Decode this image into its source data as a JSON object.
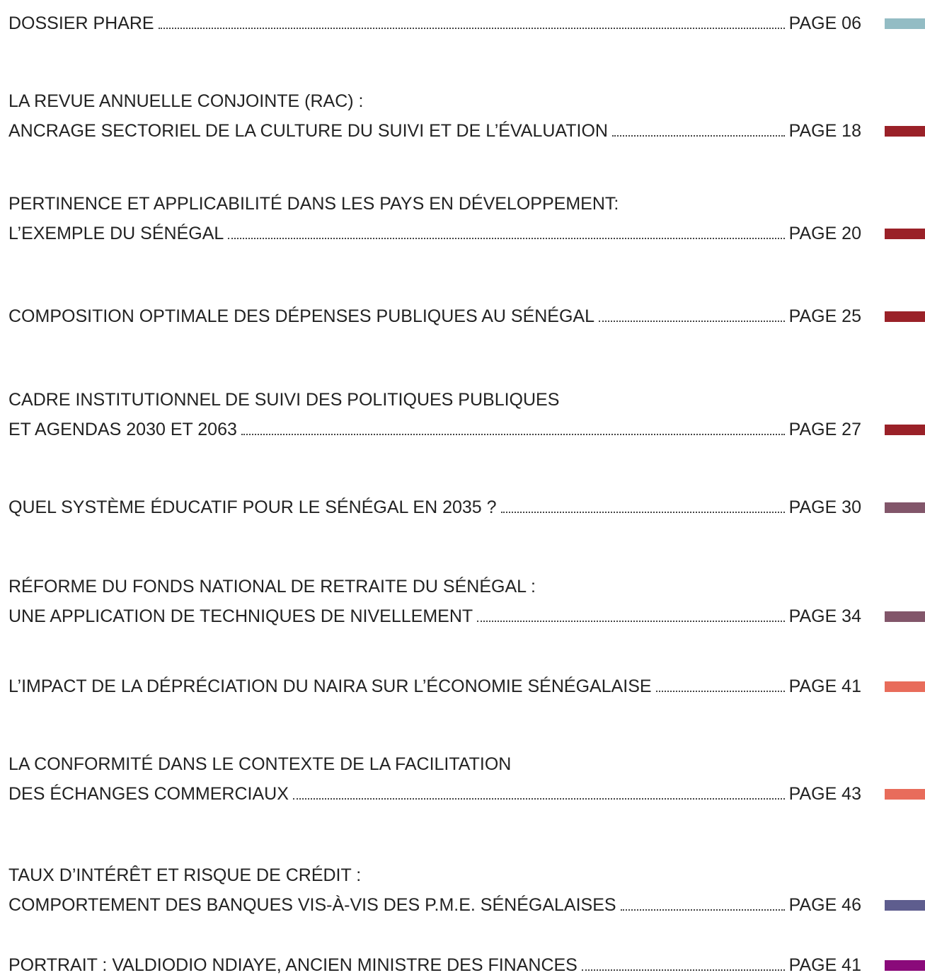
{
  "entries": [
    {
      "lines": [
        "DOSSIER PHARE"
      ],
      "page": "PAGE 06",
      "color": "#93bcc4"
    },
    {
      "lines": [
        "LA REVUE ANNUELLE CONJOINTE (RAC) :",
        "ANCRAGE SECTORIEL DE LA CULTURE DU SUIVI ET DE L’ÉVALUATION"
      ],
      "page": "PAGE 18",
      "color": "#9a2128"
    },
    {
      "lines": [
        "PERTINENCE ET APPLICABILITÉ DANS LES PAYS EN DÉVELOPPEMENT:",
        "L’EXEMPLE DU SÉNÉGAL"
      ],
      "page": "PAGE 20",
      "color": "#9a2128"
    },
    {
      "lines": [
        "COMPOSITION OPTIMALE DES DÉPENSES PUBLIQUES AU SÉNÉGAL"
      ],
      "page": "PAGE 25",
      "color": "#9a2128"
    },
    {
      "lines": [
        "CADRE INSTITUTIONNEL DE SUIVI DES POLITIQUES PUBLIQUES",
        "ET AGENDAS 2030 ET 2063"
      ],
      "page": "PAGE 27",
      "color": "#9a2128"
    },
    {
      "lines": [
        "QUEL SYSTÈME ÉDUCATIF POUR LE SÉNÉGAL EN 2035 ?"
      ],
      "page": "PAGE 30",
      "color": "#82566a"
    },
    {
      "lines": [
        "RÉFORME DU FONDS NATIONAL DE RETRAITE DU SÉNÉGAL :",
        "UNE APPLICATION DE TECHNIQUES DE NIVELLEMENT"
      ],
      "page": "PAGE 34",
      "color": "#82566a"
    },
    {
      "lines": [
        "L’IMPACT DE LA DÉPRÉCIATION DU NAIRA SUR L’ÉCONOMIE SÉNÉGALAISE"
      ],
      "page": "PAGE 41",
      "color": "#e86c5b"
    },
    {
      "lines": [
        "LA CONFORMITÉ DANS LE CONTEXTE DE LA FACILITATION",
        "DES ÉCHANGES COMMERCIAUX"
      ],
      "page": "PAGE 43",
      "color": "#e86c5b"
    },
    {
      "lines": [
        "TAUX D’INTÉRÊT ET RISQUE DE CRÉDIT :",
        "COMPORTEMENT DES BANQUES VIS-À-VIS DES P.M.E. SÉNÉGALAISES"
      ],
      "page": "PAGE 46",
      "color": "#5e5d8e"
    },
    {
      "lines": [
        "PORTRAIT : VALDIODIO NDIAYE, ANCIEN MINISTRE DES FINANCES"
      ],
      "page": "PAGE 41",
      "color": "#8a0a7a"
    }
  ]
}
